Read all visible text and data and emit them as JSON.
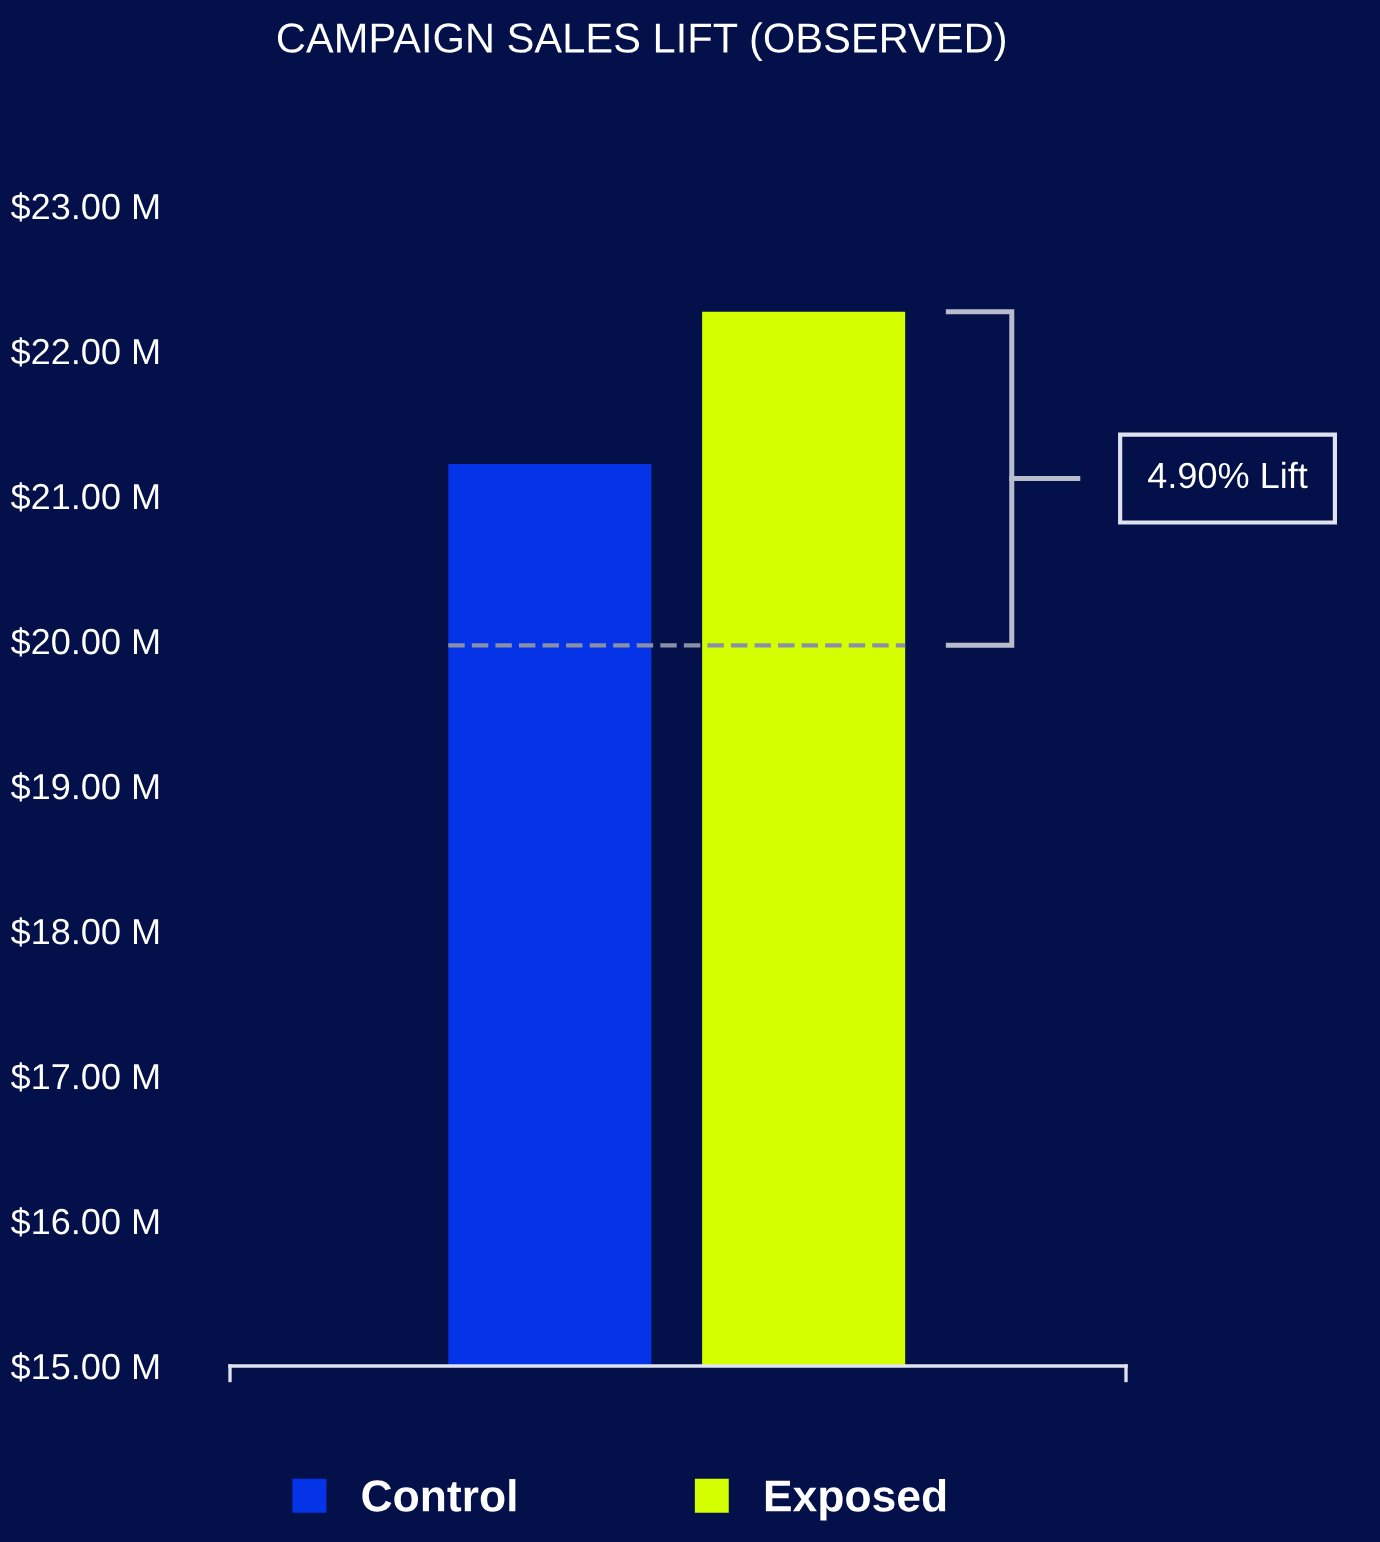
{
  "chart_data": {
    "type": "bar",
    "title": "CAMPAIGN SALES LIFT (OBSERVED)",
    "categories": [
      null,
      null
    ],
    "series": [
      {
        "name": "Control",
        "color": "#0433e8",
        "values": [
          21.22,
          null
        ]
      },
      {
        "name": "Exposed",
        "color": "#d4ff00",
        "values": [
          null,
          22.27
        ]
      }
    ],
    "ylim": [
      15,
      23
    ],
    "yticks": [
      {
        "value": 15,
        "label": "$15.00 M"
      },
      {
        "value": 16,
        "label": "$16.00 M"
      },
      {
        "value": 17,
        "label": "$17.00 M"
      },
      {
        "value": 18,
        "label": "$18.00 M"
      },
      {
        "value": 19,
        "label": "$19.00 M"
      },
      {
        "value": 20,
        "label": "$20.00 M"
      },
      {
        "value": 21,
        "label": "$21.00 M"
      },
      {
        "value": 22,
        "label": "$22.00 M"
      },
      {
        "value": 23,
        "label": "$23.00 M"
      }
    ],
    "ref_lines": [
      {
        "axis": "y",
        "value": 19.97,
        "color": "#8a8fa8",
        "line_style": "dashed"
      }
    ],
    "annotations": [
      "4.90% Lift"
    ],
    "legend": "bottom",
    "grid": false
  }
}
